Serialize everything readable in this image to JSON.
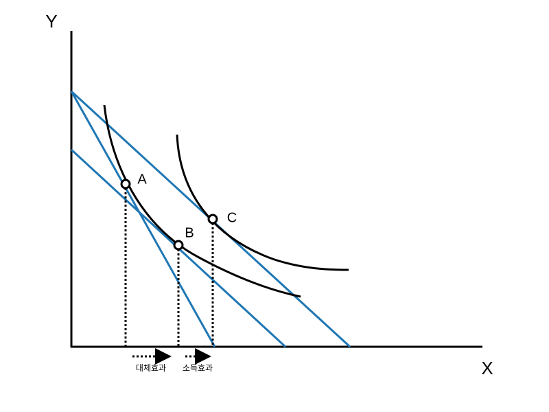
{
  "axes": {
    "y_label": "Y",
    "x_label": "X"
  },
  "points": [
    {
      "label": "A"
    },
    {
      "label": "B"
    },
    {
      "label": "C"
    }
  ],
  "effects": [
    {
      "label": "대체효과"
    },
    {
      "label": "소득효과"
    }
  ]
}
